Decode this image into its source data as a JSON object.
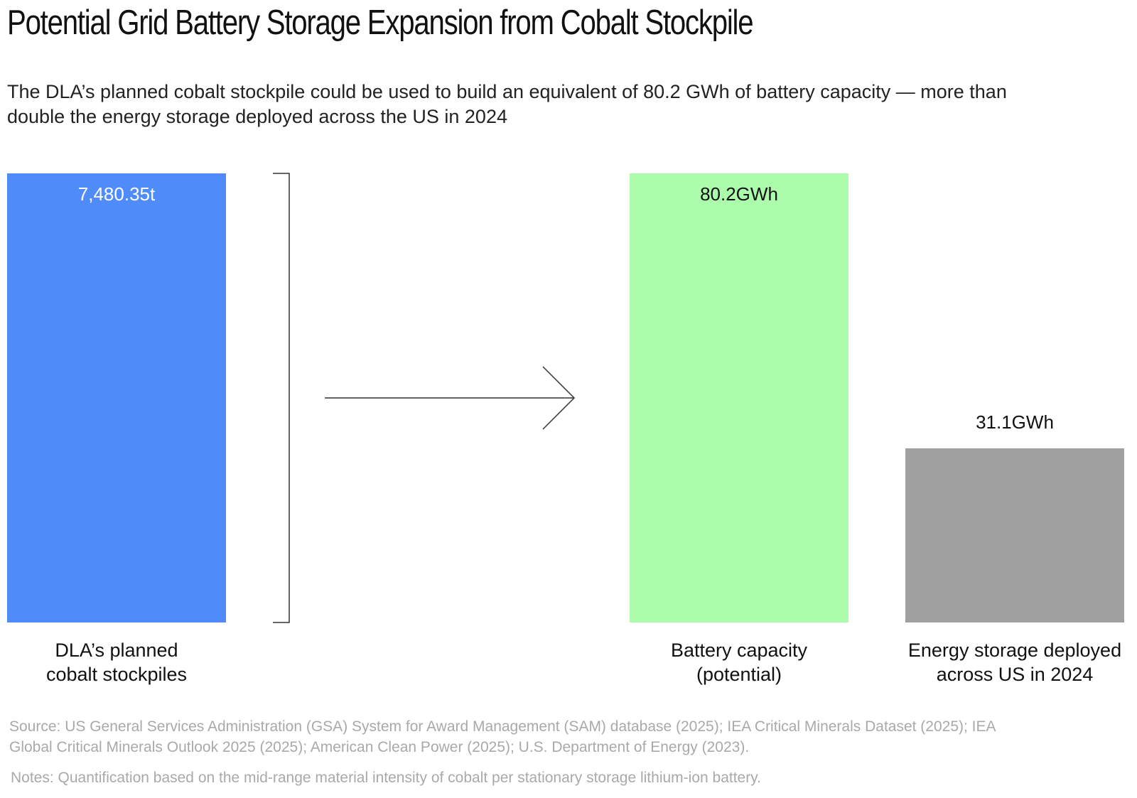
{
  "header": {
    "title": "Potential Grid Battery Storage Expansion from Cobalt Stockpile",
    "subtitle": "The DLA’s planned cobalt stockpile could be used to build an equivalent of 80.2 GWh of battery capacity — more than double the energy storage deployed across the US in 2024"
  },
  "chart_data": {
    "type": "bar",
    "title": "Potential Grid Battery Storage Expansion from Cobalt Stockpile",
    "categories": [
      "DLA’s planned cobalt stockpiles",
      "Battery capacity (potential)",
      "Energy storage deployed across US in 2024"
    ],
    "bars": [
      {
        "category": "DLA’s planned cobalt stockpiles",
        "label_lines": [
          "DLA’s planned",
          "cobalt stockpiles"
        ],
        "value": 7480.35,
        "unit": "t",
        "data_label": "7,480.35t",
        "color": "#4f8bf9",
        "label_color": "#ffffff",
        "label_inside": true,
        "relative_height": 1.0
      },
      {
        "category": "Battery capacity (potential)",
        "label_lines": [
          "Battery capacity",
          "(potential)"
        ],
        "value": 80.2,
        "unit": "GWh",
        "data_label": "80.2GWh",
        "color": "#abfcab",
        "label_color": "#111111",
        "label_inside": true,
        "relative_height": 1.0
      },
      {
        "category": "Energy storage deployed across US in 2024",
        "label_lines": [
          "Energy storage deployed",
          "across US in 2024"
        ],
        "value": 31.1,
        "unit": "GWh",
        "data_label": "31.1GWh",
        "color": "#a0a0a0",
        "label_color": "#111111",
        "label_inside": false,
        "relative_height": 0.3878
      }
    ],
    "connector": "bracket-and-arrow",
    "xlabel": "",
    "ylabel": "",
    "grid": false
  },
  "footer": {
    "source": "Source: US General Services Administration (GSA) System for Award Management (SAM) database (2025); IEA Critical Minerals Dataset (2025); IEA Global Critical Minerals Outlook 2025 (2025); American Clean Power (2025); U.S. Department of Energy (2023).",
    "notes": "Notes:  Quantification based on the mid-range material intensity of cobalt per stationary storage lithium-ion battery."
  },
  "colors": {
    "text": "#111111",
    "muted": "#a9a9a9",
    "connector": "#333333"
  }
}
